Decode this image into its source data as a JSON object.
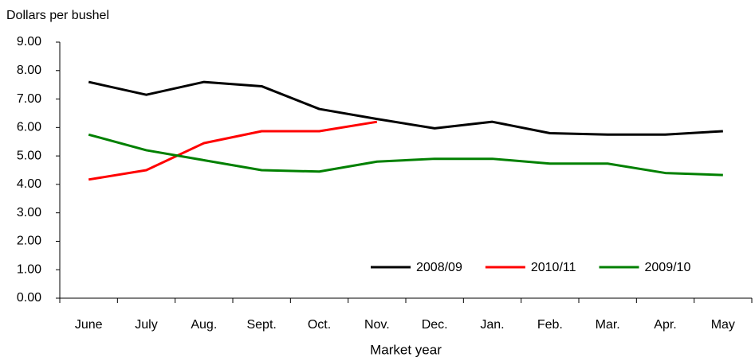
{
  "chart_data": {
    "type": "line",
    "y_axis_label": "Dollars per bushel",
    "x_axis_label": "Market year",
    "categories": [
      "June",
      "July",
      "Aug.",
      "Sept.",
      "Oct.",
      "Nov.",
      "Dec.",
      "Jan.",
      "Feb.",
      "Mar.",
      "Apr.",
      "May"
    ],
    "series": [
      {
        "name": "2008/09",
        "color": "#000000",
        "values": [
          7.6,
          7.15,
          7.6,
          7.45,
          6.65,
          6.3,
          5.97,
          6.2,
          5.8,
          5.75,
          5.75,
          5.87
        ]
      },
      {
        "name": "2010/11",
        "color": "#ff0000",
        "values": [
          4.17,
          4.5,
          5.45,
          5.87,
          5.87,
          6.2,
          null,
          null,
          null,
          null,
          null,
          null
        ]
      },
      {
        "name": "2009/10",
        "color": "#008000",
        "values": [
          5.75,
          5.2,
          4.85,
          4.5,
          4.45,
          4.8,
          4.9,
          4.9,
          4.73,
          4.73,
          4.4,
          4.33
        ]
      }
    ],
    "ylim": [
      0,
      9
    ],
    "yticks": [
      {
        "value": 0,
        "label": "0.00"
      },
      {
        "value": 1,
        "label": "1.00"
      },
      {
        "value": 2,
        "label": "2.00"
      },
      {
        "value": 3,
        "label": "3.00"
      },
      {
        "value": 4,
        "label": "4.00"
      },
      {
        "value": 5,
        "label": "5.00"
      },
      {
        "value": 6,
        "label": "6.00"
      },
      {
        "value": 7,
        "label": "7.00"
      },
      {
        "value": 8,
        "label": "8.00"
      },
      {
        "value": 9,
        "label": "9.00"
      }
    ],
    "grid": false,
    "legend": "lower right"
  }
}
